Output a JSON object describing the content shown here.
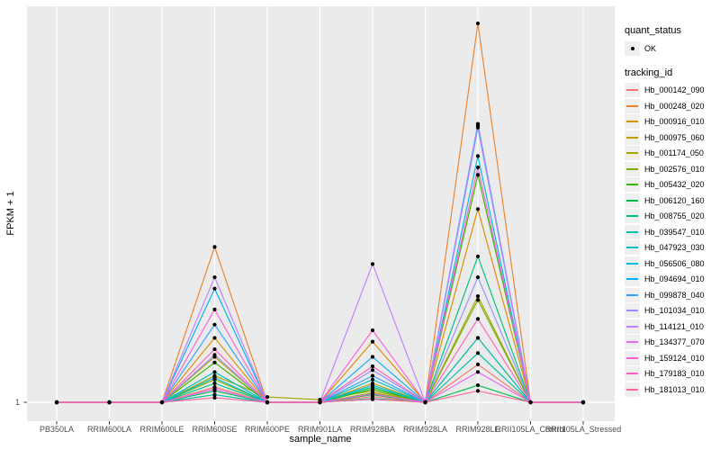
{
  "chart_data": {
    "type": "line",
    "title": "",
    "xlabel": "sample_name",
    "ylabel": "FPKM + 1",
    "y_axis_ticks": [
      "1"
    ],
    "y_scale_note": "only the y=1 tick is labeled; series values below are estimated fractions of full panel height above the y=1 baseline",
    "panel_bg": "#EBEBEB",
    "gridline_color": "#FFFFFF",
    "point_marker_color": "#000000",
    "legend_position": "right",
    "categories": [
      "PB350LA",
      "RRIM600LA",
      "RRIM600LE",
      "RRIM600SE",
      "RRIM600PE",
      "RRIM901LA",
      "RRIM928BA",
      "RRIM928LA",
      "RRIM928LE",
      "RRII105LA_Control",
      "RRII105LA_Stressed"
    ],
    "legend": {
      "quant_status_title": "quant_status",
      "quant_status_items": [
        {
          "label": "OK",
          "marker": "point"
        }
      ],
      "tracking_id_title": "tracking_id"
    },
    "series": [
      {
        "name": "Hb_000142_090",
        "color": "#F8766D",
        "values": [
          0,
          0,
          0,
          0.04,
          0,
          0,
          0.015,
          0,
          0.1,
          0,
          0
        ]
      },
      {
        "name": "Hb_000248_020",
        "color": "#EA8331",
        "values": [
          0,
          0,
          0,
          0.41,
          0,
          0,
          0.02,
          0,
          1.0,
          0,
          0
        ]
      },
      {
        "name": "Hb_000916_010",
        "color": "#D89000",
        "values": [
          0,
          0,
          0,
          0.17,
          0,
          0,
          0.16,
          0,
          0.51,
          0,
          0
        ]
      },
      {
        "name": "Hb_000975_060",
        "color": "#C09B00",
        "values": [
          0,
          0,
          0,
          0.12,
          0,
          0,
          0.05,
          0,
          0.17,
          0,
          0
        ]
      },
      {
        "name": "Hb_001174_050",
        "color": "#A3A500",
        "values": [
          0,
          0,
          0,
          0.07,
          0.014,
          0.007,
          0.03,
          0,
          0.28,
          0,
          0
        ]
      },
      {
        "name": "Hb_002576_010",
        "color": "#7CAE00",
        "values": [
          0,
          0,
          0,
          0.06,
          0,
          0,
          0.025,
          0,
          0.27,
          0,
          0
        ]
      },
      {
        "name": "Hb_005432_020",
        "color": "#39B600",
        "values": [
          0,
          0,
          0,
          0.105,
          0,
          0,
          0.035,
          0,
          0.6,
          0,
          0
        ]
      },
      {
        "name": "Hb_006120_160",
        "color": "#00BB4E",
        "values": [
          0,
          0,
          0,
          0.03,
          0,
          0,
          0.02,
          0,
          0.045,
          0,
          0
        ]
      },
      {
        "name": "Hb_008755_020",
        "color": "#00BF7D",
        "values": [
          0,
          0,
          0,
          0.05,
          0,
          0,
          0.04,
          0,
          0.385,
          0,
          0
        ]
      },
      {
        "name": "Hb_039547_010",
        "color": "#00C1A3",
        "values": [
          0,
          0,
          0,
          0.02,
          0,
          0,
          0.01,
          0,
          0.13,
          0,
          0
        ]
      },
      {
        "name": "Hb_047923_030",
        "color": "#00BFC4",
        "values": [
          0,
          0,
          0,
          0.08,
          0,
          0,
          0.06,
          0,
          0.17,
          0,
          0
        ]
      },
      {
        "name": "Hb_056506_080",
        "color": "#00BAE0",
        "values": [
          0,
          0,
          0,
          0.065,
          0,
          0,
          0.045,
          0,
          0.65,
          0,
          0
        ]
      },
      {
        "name": "Hb_094694_010",
        "color": "#00B0F6",
        "values": [
          0,
          0,
          0,
          0.3,
          0,
          0,
          0.12,
          0,
          0.735,
          0,
          0
        ]
      },
      {
        "name": "Hb_099878_040",
        "color": "#35A2FF",
        "values": [
          0,
          0,
          0,
          0.205,
          0,
          0,
          0.07,
          0,
          0.725,
          0,
          0
        ]
      },
      {
        "name": "Hb_101034_010",
        "color": "#9590FF",
        "values": [
          0,
          0,
          0,
          0.125,
          0,
          0,
          0.085,
          0,
          0.33,
          0,
          0
        ]
      },
      {
        "name": "Hb_114121_010",
        "color": "#BF80FF",
        "values": [
          0,
          0,
          0,
          0.33,
          0,
          0,
          0.365,
          0,
          0.73,
          0,
          0
        ]
      },
      {
        "name": "Hb_134377_070",
        "color": "#E76BF3",
        "values": [
          0,
          0,
          0,
          0.035,
          0,
          0,
          0.022,
          0,
          0.08,
          0,
          0
        ]
      },
      {
        "name": "Hb_159124_010",
        "color": "#FA62DB",
        "values": [
          0,
          0,
          0,
          0.245,
          0,
          0,
          0.19,
          0,
          0.62,
          0,
          0
        ]
      },
      {
        "name": "Hb_179183_010",
        "color": "#FF62BC",
        "values": [
          0,
          0,
          0,
          0.14,
          0,
          0,
          0.095,
          0,
          0.22,
          0,
          0
        ]
      },
      {
        "name": "Hb_181013_010",
        "color": "#FF6A98",
        "values": [
          0,
          0,
          0,
          0.012,
          0,
          0,
          0.008,
          0,
          0.03,
          0,
          0
        ]
      }
    ]
  }
}
